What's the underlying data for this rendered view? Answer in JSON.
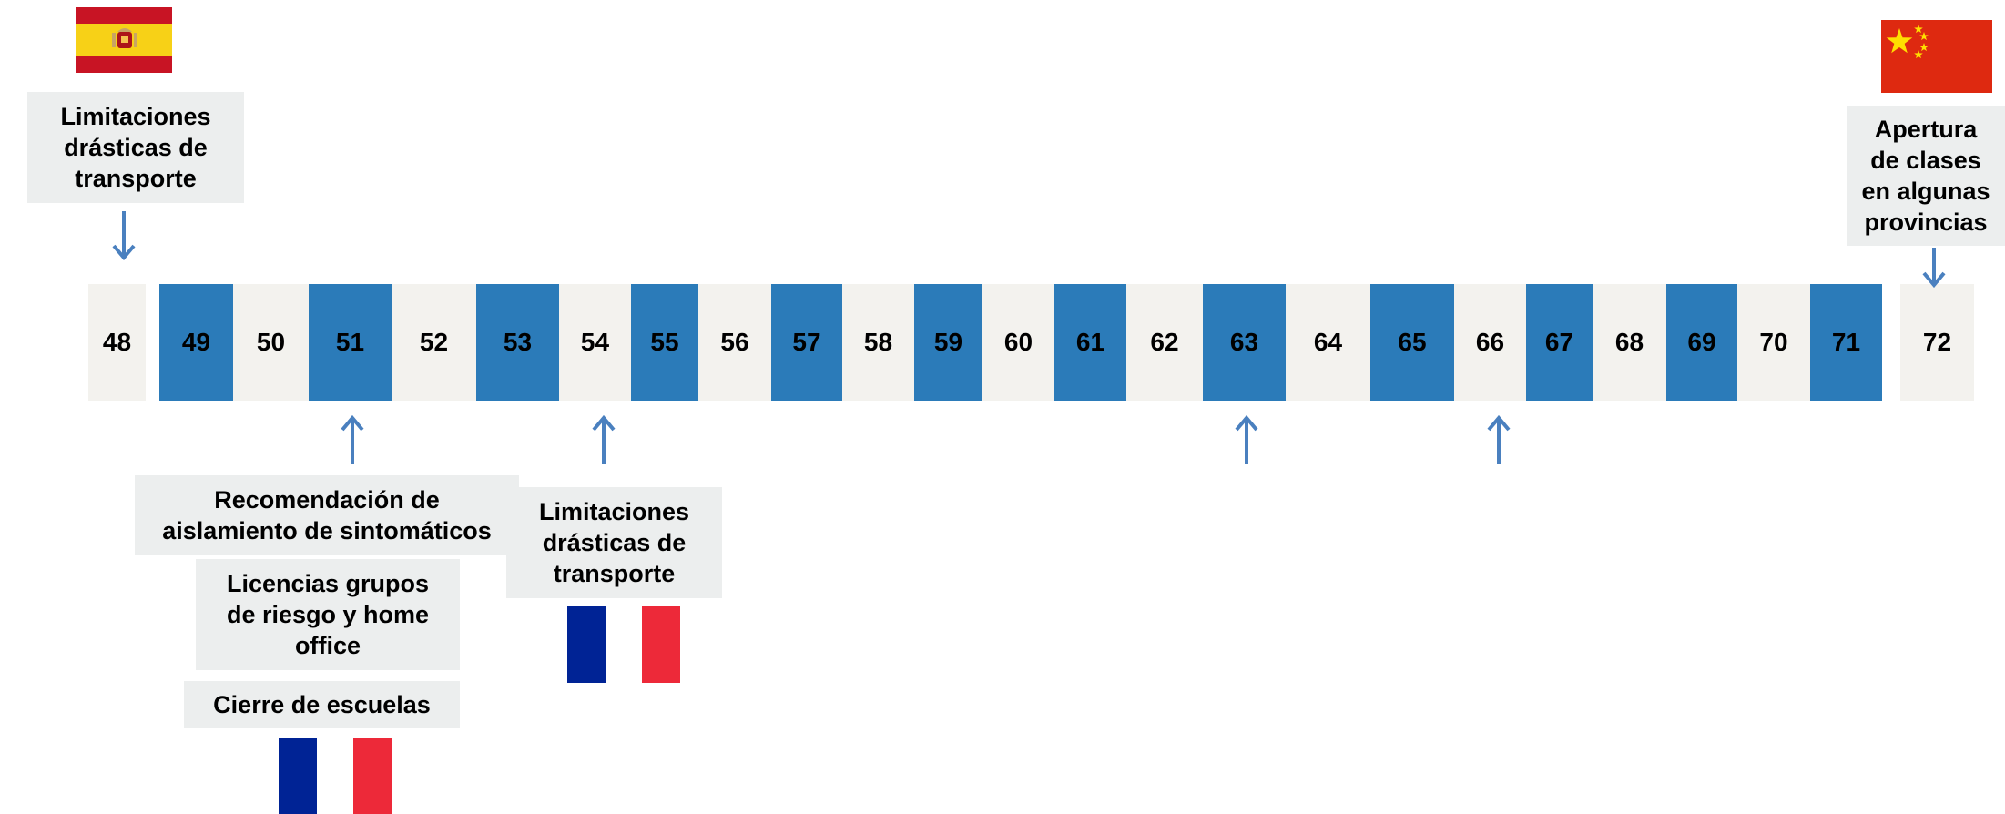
{
  "colors": {
    "blue": "#2b7bb9",
    "light": "#f3f2ee",
    "note": "#eceeee",
    "arrow": "#4a80bf",
    "spain_red": "#c81424",
    "spain_yellow": "#f7d117",
    "china_red": "#de2910",
    "china_star": "#ffde00",
    "france_blue": "#002395",
    "france_red": "#ed2939"
  },
  "timeline": {
    "cells": [
      {
        "label": "48",
        "style": "light"
      },
      {
        "label": "49",
        "style": "blue"
      },
      {
        "label": "50",
        "style": "light"
      },
      {
        "label": "51",
        "style": "blue"
      },
      {
        "label": "52",
        "style": "light"
      },
      {
        "label": "53",
        "style": "blue"
      },
      {
        "label": "54",
        "style": "light"
      },
      {
        "label": "55",
        "style": "blue"
      },
      {
        "label": "56",
        "style": "light"
      },
      {
        "label": "57",
        "style": "blue"
      },
      {
        "label": "58",
        "style": "light"
      },
      {
        "label": "59",
        "style": "blue"
      },
      {
        "label": "60",
        "style": "light"
      },
      {
        "label": "61",
        "style": "blue"
      },
      {
        "label": "62",
        "style": "light"
      },
      {
        "label": "63",
        "style": "blue"
      },
      {
        "label": "64",
        "style": "light"
      },
      {
        "label": "65",
        "style": "blue"
      },
      {
        "label": "66",
        "style": "light"
      },
      {
        "label": "67",
        "style": "blue"
      },
      {
        "label": "68",
        "style": "light"
      },
      {
        "label": "69",
        "style": "blue"
      },
      {
        "label": "70",
        "style": "light"
      },
      {
        "label": "71",
        "style": "blue"
      },
      {
        "label": "72",
        "style": "light"
      }
    ]
  },
  "notes": {
    "spain_transport": [
      "Limitaciones",
      "drásticas de",
      "transporte"
    ],
    "china_classes": [
      "Apertura",
      "de clases",
      "en algunas",
      "provincias"
    ],
    "isolation": [
      "Recomendación de",
      "aislamiento de sintomáticos"
    ],
    "licenses": [
      "Licencias grupos",
      "de riesgo y home",
      "office"
    ],
    "schools": [
      "Cierre de escuelas"
    ],
    "france_transport": [
      "Limitaciones",
      "drásticas de",
      "transporte"
    ]
  },
  "flags": [
    "spain-flag",
    "china-flag",
    "france-flag"
  ],
  "arrows": [
    "arrow-down-icon",
    "arrow-up-icon"
  ]
}
